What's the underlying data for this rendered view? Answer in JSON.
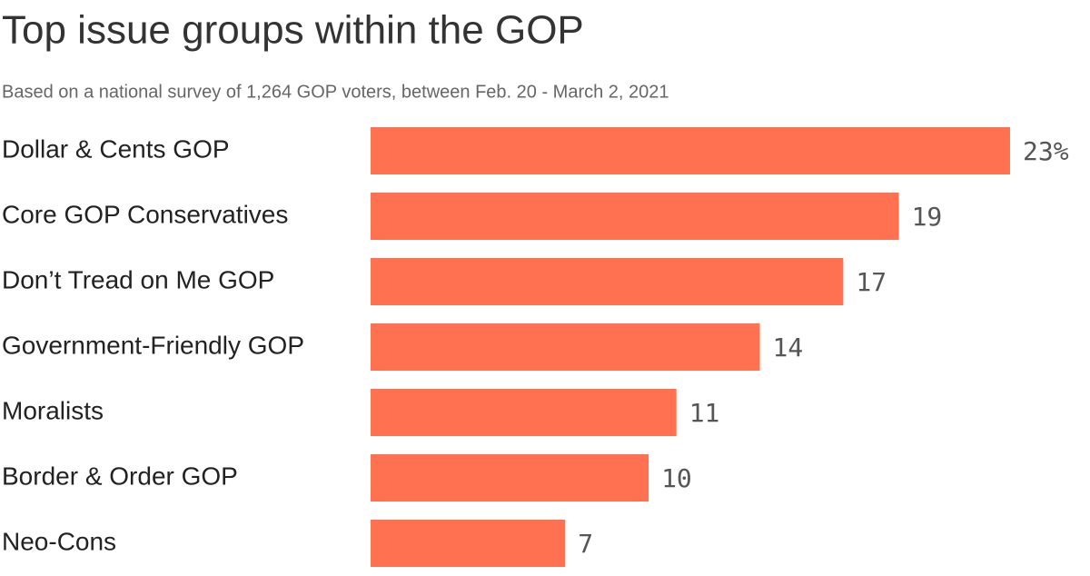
{
  "chart_data": {
    "type": "bar",
    "orientation": "horizontal",
    "title": "Top issue groups within the GOP",
    "subtitle": "Based on a national survey of 1,264 GOP voters, between Feb. 20 - March 2, 2021",
    "categories": [
      "Dollar & Cents GOP",
      "Core GOP Conservatives",
      "Don’t Tread on Me GOP",
      "Government-Friendly GOP",
      "Moralists",
      "Border & Order GOP",
      "Neo-Cons"
    ],
    "values": [
      23,
      19,
      17,
      14,
      11,
      10,
      7
    ],
    "value_labels": [
      "23%",
      "19",
      "17",
      "14",
      "11",
      "10",
      "7"
    ],
    "color": "#ff7150",
    "xlim": [
      0,
      23
    ]
  }
}
